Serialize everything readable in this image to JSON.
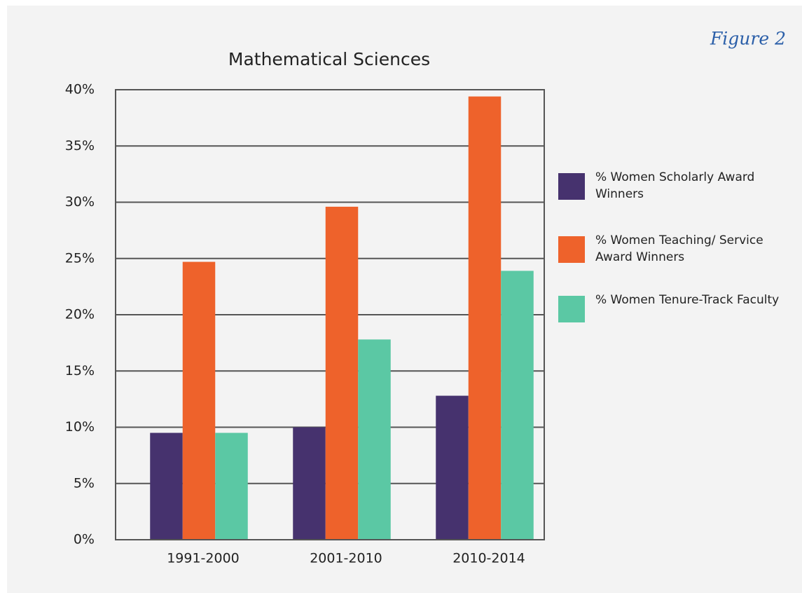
{
  "chart_data": {
    "type": "bar",
    "title": "Mathematical Sciences",
    "figure_label": "Figure 2",
    "categories": [
      "1991-2000",
      "2001-2010",
      "2010-2014"
    ],
    "series": [
      {
        "name": "% Women Scholarly Award Winners",
        "color": "#46326e",
        "values": [
          9.5,
          10,
          12.8
        ]
      },
      {
        "name": "% Women Teaching/ Service Award Winners",
        "color": "#ee622b",
        "values": [
          24.7,
          29.6,
          39.4
        ]
      },
      {
        "name": "% Women Tenure-Track Faculty",
        "color": "#5bc8a4",
        "values": [
          9.5,
          17.8,
          23.9
        ]
      }
    ],
    "ylim": [
      0,
      40
    ],
    "yticks": [
      {
        "value": 0,
        "label": "0%"
      },
      {
        "value": 5,
        "label": "5%"
      },
      {
        "value": 10,
        "label": "10%"
      },
      {
        "value": 15,
        "label": "15%"
      },
      {
        "value": 20,
        "label": "20%"
      },
      {
        "value": 25,
        "label": "25%"
      },
      {
        "value": 30,
        "label": "30%"
      },
      {
        "value": 35,
        "label": "35%"
      },
      {
        "value": 40,
        "label": "40%"
      }
    ],
    "grid": true,
    "legend": "right"
  }
}
